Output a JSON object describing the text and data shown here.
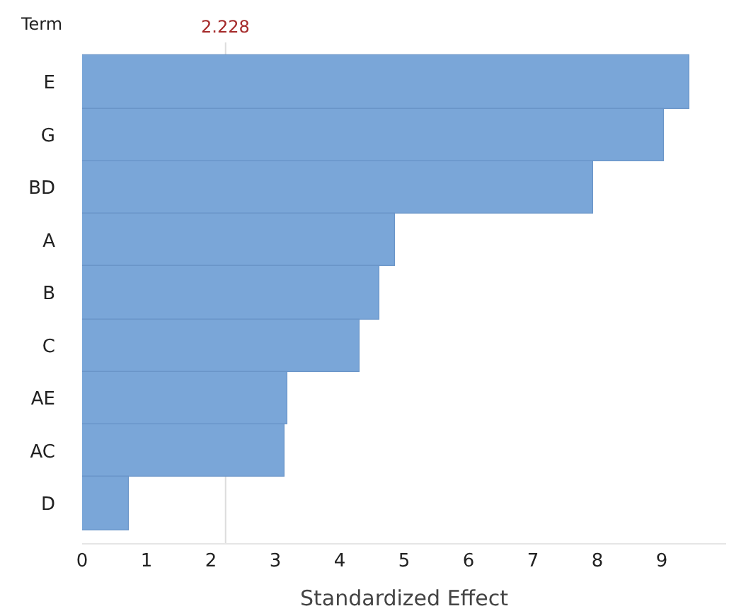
{
  "chart_data": {
    "type": "bar",
    "orientation": "horizontal",
    "xlabel": "Standardized Effect",
    "ylabel": "Term",
    "categories": [
      "E",
      "G",
      "BD",
      "A",
      "B",
      "C",
      "AE",
      "AC",
      "D"
    ],
    "values": [
      9.43,
      9.03,
      7.93,
      4.86,
      4.62,
      4.31,
      3.19,
      3.14,
      0.73
    ],
    "color": "#7aa6d8",
    "xlim": [
      0,
      10
    ],
    "xticks": [
      0,
      1,
      2,
      3,
      4,
      5,
      6,
      7,
      8,
      9
    ],
    "ref_lines": [
      {
        "axis": "x",
        "value": 2.228,
        "label": "2.228",
        "color": "#dddddd"
      }
    ],
    "grid": false,
    "legend": false
  }
}
